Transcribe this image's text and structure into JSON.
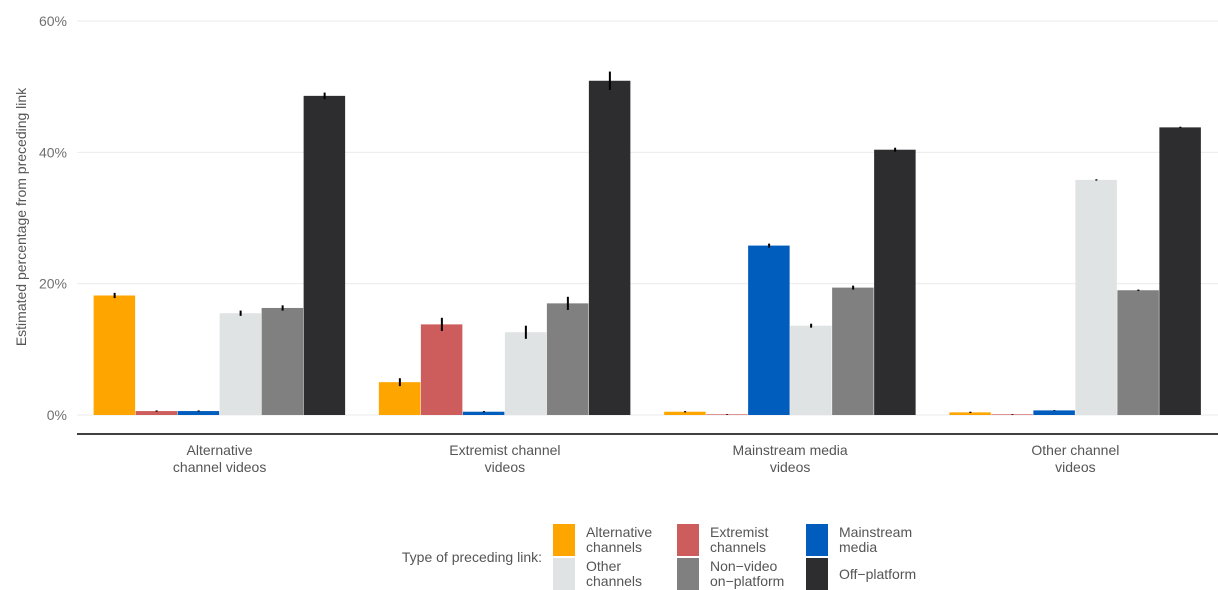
{
  "chart_data": {
    "type": "bar",
    "ylabel": "Estimated percentage from preceding link",
    "xlabel": "",
    "ylim": [
      0,
      60
    ],
    "yticks": [
      0,
      20,
      40,
      60
    ],
    "ytick_labels": [
      "0%",
      "20%",
      "40%",
      "60%"
    ],
    "grid": true,
    "categories": [
      [
        "Alternative",
        "channel videos"
      ],
      [
        "Extremist channel",
        "videos"
      ],
      [
        "Mainstream media",
        "videos"
      ],
      [
        "Other channel",
        "videos"
      ]
    ],
    "series": [
      {
        "name": [
          "Alternative",
          "channels"
        ],
        "color": "#FFA500",
        "values": [
          18.2,
          5.0,
          0.5,
          0.4
        ],
        "error": [
          0.4,
          0.6,
          0.1,
          0.1
        ]
      },
      {
        "name": [
          "Extremist",
          "channels"
        ],
        "color": "#CD5C5C",
        "values": [
          0.6,
          13.8,
          0.1,
          0.1
        ],
        "error": [
          0.1,
          1.0,
          0.05,
          0.05
        ]
      },
      {
        "name": [
          "Mainstream",
          "media"
        ],
        "color": "#005CBD",
        "values": [
          0.6,
          0.5,
          25.8,
          0.7
        ],
        "error": [
          0.1,
          0.1,
          0.3,
          0.05
        ]
      },
      {
        "name": [
          "Other",
          "channels"
        ],
        "color": "#E0E3E3",
        "values": [
          15.5,
          12.6,
          13.6,
          35.8
        ],
        "error": [
          0.4,
          1.0,
          0.3,
          0.1
        ]
      },
      {
        "name": [
          "Non−video",
          "on−platform"
        ],
        "color": "#808080",
        "values": [
          16.3,
          17.0,
          19.4,
          19.0
        ],
        "error": [
          0.4,
          1.0,
          0.3,
          0.1
        ]
      },
      {
        "name": [
          "Off−platform"
        ],
        "color": "#2D2D30",
        "values": [
          48.6,
          50.9,
          40.4,
          43.8
        ],
        "error": [
          0.5,
          1.4,
          0.3,
          0.1
        ]
      }
    ],
    "legend": {
      "title": "Type of preceding link:",
      "position": "bottom"
    }
  }
}
